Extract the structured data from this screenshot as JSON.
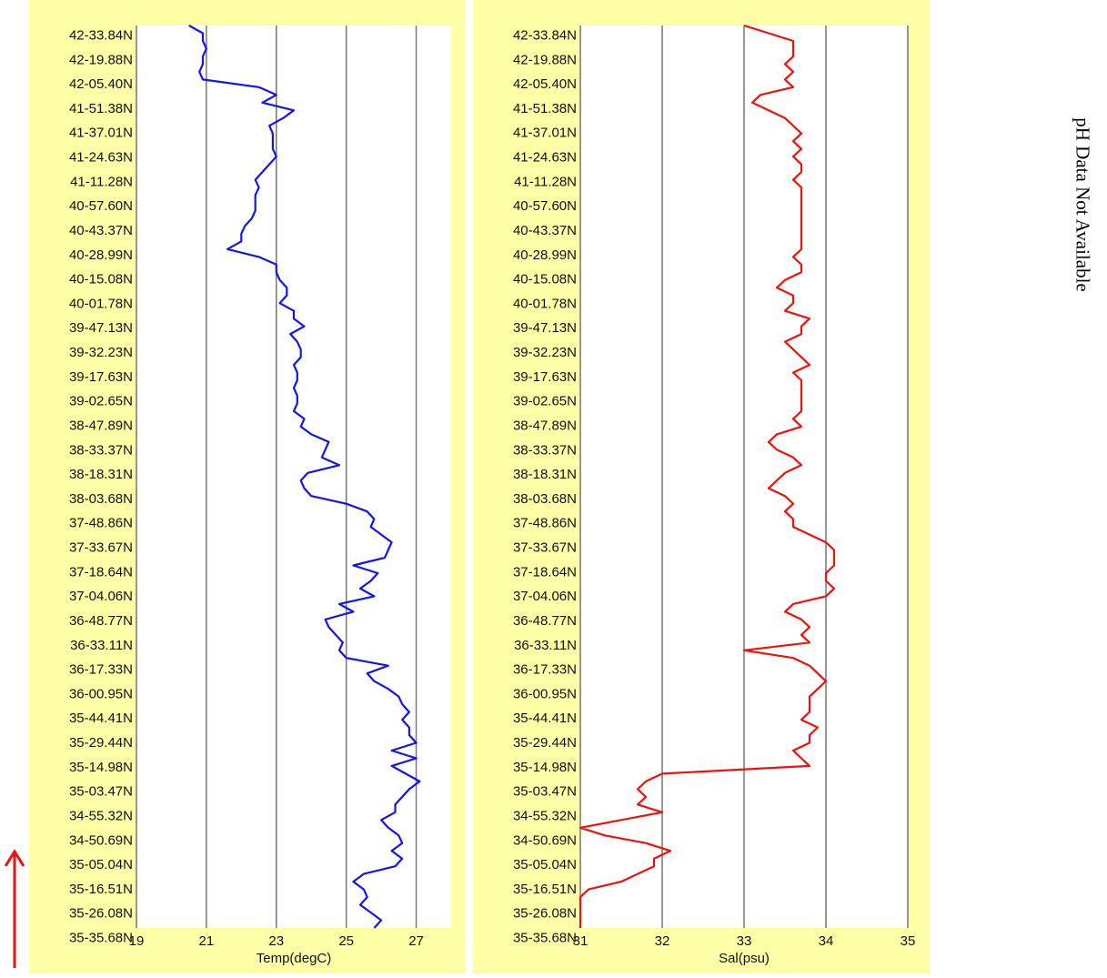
{
  "chart_data": [
    {
      "type": "line",
      "orientation": "vertical-profile",
      "xlabel": "Temp(degC)",
      "xlim": [
        19,
        28
      ],
      "x_ticks": [
        19,
        21,
        23,
        25,
        27
      ],
      "grid": "vertical lines at x ticks",
      "color": "#1515e8",
      "y_tick_labels": [
        "42-33.84N",
        "42-19.88N",
        "42-05.40N",
        "41-51.38N",
        "41-37.01N",
        "41-24.63N",
        "41-11.28N",
        "40-57.60N",
        "40-43.37N",
        "40-28.99N",
        "40-15.08N",
        "40-01.78N",
        "39-47.13N",
        "39-32.23N",
        "39-17.63N",
        "39-02.65N",
        "38-47.89N",
        "38-33.37N",
        "38-18.31N",
        "38-03.68N",
        "37-48.86N",
        "37-33.67N",
        "37-18.64N",
        "37-04.06N",
        "36-48.77N",
        "36-33.11N",
        "36-17.33N",
        "36-00.95N",
        "35-44.41N",
        "35-29.44N",
        "35-14.98N",
        "35-03.47N",
        "34-55.32N",
        "34-50.69N",
        "35-05.04N",
        "35-16.51N",
        "35-26.08N",
        "35-35.68N"
      ],
      "values": [
        20.5,
        20.9,
        20.9,
        21.0,
        20.9,
        20.9,
        20.8,
        20.9,
        22.5,
        23.0,
        22.6,
        23.5,
        23.2,
        22.8,
        22.9,
        22.9,
        22.9,
        23.0,
        22.8,
        22.6,
        22.4,
        22.5,
        22.4,
        22.4,
        22.4,
        22.3,
        22.1,
        22.0,
        22.0,
        21.6,
        22.5,
        23.0,
        23.0,
        23.1,
        23.3,
        23.3,
        23.1,
        23.5,
        23.5,
        23.8,
        23.4,
        23.6,
        23.7,
        23.7,
        23.5,
        23.6,
        23.6,
        23.5,
        23.6,
        23.6,
        23.5,
        23.8,
        23.7,
        24.0,
        24.5,
        24.4,
        24.3,
        24.8,
        23.9,
        23.7,
        23.8,
        24.0,
        25.0,
        25.6,
        25.8,
        25.7,
        26.0,
        26.3,
        26.2,
        26.1,
        25.2,
        25.9,
        25.7,
        25.4,
        25.8,
        24.8,
        25.2,
        24.4,
        24.5,
        24.7,
        24.9,
        24.8,
        25.0,
        26.2,
        25.6,
        25.8,
        26.2,
        26.5,
        26.6,
        26.8,
        26.6,
        26.8,
        26.8,
        27.0,
        26.3,
        27.0,
        26.3,
        26.7,
        27.1,
        26.8,
        26.6,
        26.4,
        26.4,
        26.0,
        26.2,
        26.5,
        26.6,
        26.3,
        26.6,
        26.4,
        25.5,
        25.2,
        25.5,
        25.6,
        25.4,
        25.7,
        26.0,
        25.8
      ]
    },
    {
      "type": "line",
      "orientation": "vertical-profile",
      "xlabel": "Sal(psu)",
      "xlim": [
        31,
        35
      ],
      "x_ticks": [
        31,
        32,
        33,
        34,
        35
      ],
      "grid": "vertical lines at x ticks",
      "color": "#ee1111",
      "y_tick_labels": [
        "42-33.84N",
        "42-19.88N",
        "42-05.40N",
        "41-51.38N",
        "41-37.01N",
        "41-24.63N",
        "41-11.28N",
        "40-57.60N",
        "40-43.37N",
        "40-28.99N",
        "40-15.08N",
        "40-01.78N",
        "39-47.13N",
        "39-32.23N",
        "39-17.63N",
        "39-02.65N",
        "38-47.89N",
        "38-33.37N",
        "38-18.31N",
        "38-03.68N",
        "37-48.86N",
        "37-33.67N",
        "37-18.64N",
        "37-04.06N",
        "36-48.77N",
        "36-33.11N",
        "36-17.33N",
        "36-00.95N",
        "35-44.41N",
        "35-29.44N",
        "35-14.98N",
        "35-03.47N",
        "34-55.32N",
        "34-50.69N",
        "35-05.04N",
        "35-16.51N",
        "35-26.08N",
        "35-35.68N"
      ],
      "values": [
        33.0,
        33.3,
        33.6,
        33.6,
        33.6,
        33.5,
        33.6,
        33.5,
        33.6,
        33.2,
        33.1,
        33.3,
        33.5,
        33.6,
        33.7,
        33.6,
        33.7,
        33.6,
        33.7,
        33.7,
        33.6,
        33.7,
        33.7,
        33.7,
        33.7,
        33.7,
        33.7,
        33.7,
        33.7,
        33.7,
        33.6,
        33.7,
        33.7,
        33.5,
        33.4,
        33.6,
        33.6,
        33.5,
        33.8,
        33.7,
        33.7,
        33.5,
        33.6,
        33.7,
        33.8,
        33.6,
        33.7,
        33.7,
        33.7,
        33.7,
        33.7,
        33.6,
        33.7,
        33.4,
        33.3,
        33.4,
        33.6,
        33.7,
        33.5,
        33.4,
        33.3,
        33.5,
        33.6,
        33.5,
        33.6,
        33.6,
        33.8,
        34.0,
        34.1,
        34.1,
        34.1,
        34.0,
        34.0,
        34.1,
        34.0,
        33.6,
        33.5,
        33.7,
        33.8,
        33.7,
        33.8,
        33.0,
        33.6,
        33.8,
        33.9,
        34.0,
        33.9,
        33.8,
        33.8,
        33.8,
        33.7,
        33.9,
        33.8,
        33.8,
        33.6,
        33.7,
        33.8,
        32.0,
        31.8,
        31.7,
        31.8,
        31.7,
        32.0,
        31.5,
        31.0,
        31.3,
        31.8,
        32.1,
        31.9,
        31.9,
        31.7,
        31.5,
        31.1,
        31.0,
        31.0,
        31.0,
        31.0,
        31.0
      ]
    }
  ],
  "ph_note": "pH Data Not Available",
  "colors": {
    "panel_bg": "#ffffa8",
    "grid": "#777777",
    "arrow": "#ee1111"
  }
}
